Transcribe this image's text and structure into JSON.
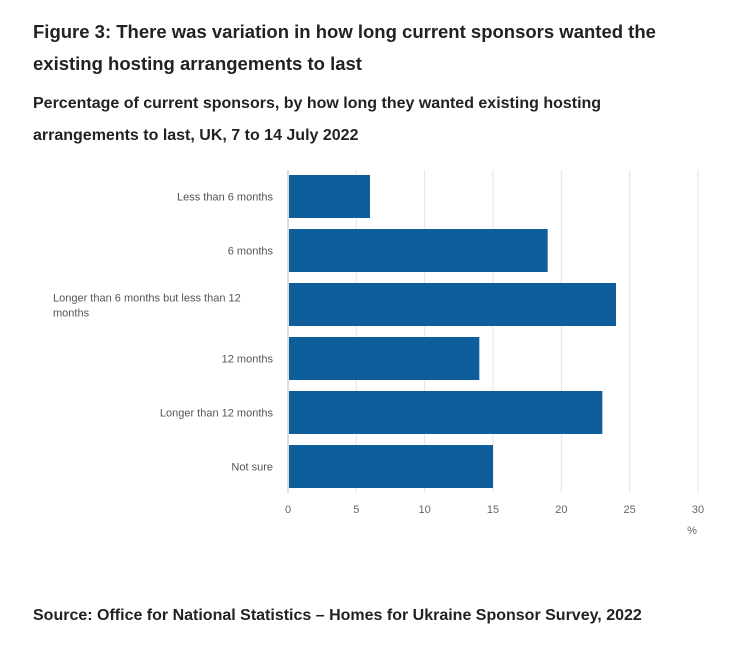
{
  "figure": {
    "title": "Figure 3: There was variation in how long current sponsors wanted the existing hosting arrangements to last",
    "subtitle": "Percentage of current sponsors, by how long they wanted existing hosting arrangements to last, UK, 7 to 14 July 2022",
    "source": "Source: Office for National Statistics – Homes for Ukraine Sponsor Survey, 2022"
  },
  "chart_data": {
    "type": "bar",
    "orientation": "horizontal",
    "categories": [
      "Less than 6 months",
      "6 months",
      "Longer than 6 months but less than 12 months",
      "12 months",
      "Longer than 12 months",
      "Not sure"
    ],
    "values": [
      6,
      19,
      24,
      14,
      23,
      15
    ],
    "xlabel": "%",
    "xlim": [
      0,
      30
    ],
    "xticks": [
      0,
      5,
      10,
      15,
      20,
      25,
      30
    ],
    "grid": true,
    "legend": "none",
    "bar_color": "#0f5e9c",
    "grid_color": "#e3e3e3",
    "axis_color": "#bebebe"
  }
}
